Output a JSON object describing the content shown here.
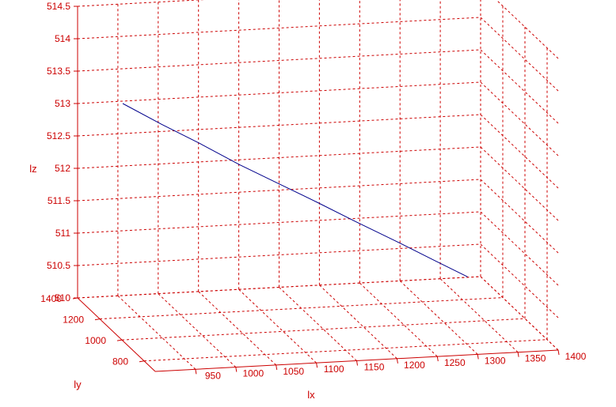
{
  "chart_data": {
    "type": "line3d",
    "title": "",
    "xlabel": "lx",
    "ylabel": "ly",
    "zlabel": "lz",
    "xlim": [
      900,
      1400
    ],
    "ylim": [
      700,
      1400
    ],
    "zlim": [
      510,
      514.5
    ],
    "x_ticks": [
      "950",
      "1000",
      "1050",
      "1100",
      "1150",
      "1200",
      "1250",
      "1300",
      "1350",
      "1400"
    ],
    "y_ticks": [
      "800",
      "1000",
      "1200",
      "1400"
    ],
    "z_ticks": [
      "510",
      "510.5",
      "511",
      "511.5",
      "512",
      "512.5",
      "513",
      "513.5",
      "514",
      "514.5"
    ],
    "grid": true,
    "axis_color": "#cc0000",
    "series": [
      {
        "color": "#00008b",
        "points": [
          [
            945,
            1320,
            513.1
          ],
          [
            985,
            1260,
            512.85
          ],
          [
            1025,
            1200,
            512.62
          ],
          [
            1065,
            1140,
            512.37
          ],
          [
            1105,
            1080,
            512.15
          ],
          [
            1145,
            1020,
            511.93
          ],
          [
            1185,
            960,
            511.7
          ],
          [
            1225,
            900,
            511.48
          ],
          [
            1265,
            840,
            511.25
          ],
          [
            1300,
            790,
            511.05
          ]
        ]
      }
    ]
  }
}
